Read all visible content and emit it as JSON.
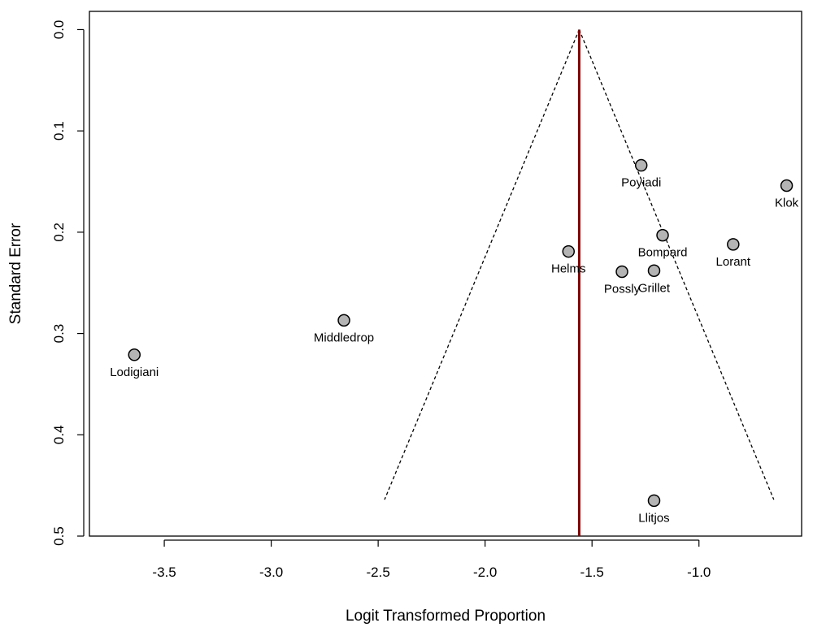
{
  "chart_data": {
    "type": "scatter",
    "title": "",
    "xlabel": "Logit Transformed Proportion",
    "ylabel": "Standard Error",
    "xlim": [
      -3.85,
      -0.52
    ],
    "ylim": [
      0.5,
      -0.018
    ],
    "x_ticks": [
      -3.5,
      -3.0,
      -2.5,
      -2.0,
      -1.5,
      -1.0
    ],
    "x_tick_labels": [
      "-3.5",
      "-3.0",
      "-2.5",
      "-2.0",
      "-1.5",
      "-1.0"
    ],
    "y_ticks": [
      0.0,
      0.1,
      0.2,
      0.3,
      0.4,
      0.5
    ],
    "y_tick_labels": [
      "0.0",
      "0.1",
      "0.2",
      "0.3",
      "0.4",
      "0.5"
    ],
    "y_reversed": true,
    "grid": false,
    "pooled_estimate": -1.56,
    "funnel": {
      "apex": [
        -1.56,
        0.0
      ],
      "left_base": [
        -2.47,
        0.464
      ],
      "right_base": [
        -0.65,
        0.464
      ]
    },
    "points": [
      {
        "label": "Poyiadi",
        "x": -1.27,
        "y": 0.134
      },
      {
        "label": "Klok",
        "x": -0.59,
        "y": 0.154
      },
      {
        "label": "Bompard",
        "x": -1.17,
        "y": 0.203
      },
      {
        "label": "Lorant",
        "x": -0.84,
        "y": 0.212
      },
      {
        "label": "Helms",
        "x": -1.61,
        "y": 0.219
      },
      {
        "label": "Possly",
        "x": -1.36,
        "y": 0.239
      },
      {
        "label": "Grillet",
        "x": -1.21,
        "y": 0.238
      },
      {
        "label": "Middledrop",
        "x": -2.66,
        "y": 0.287
      },
      {
        "label": "Lodigiani",
        "x": -3.64,
        "y": 0.321
      },
      {
        "label": "Llitjos",
        "x": -1.21,
        "y": 0.465
      }
    ],
    "colors": {
      "point_fill": "#b4b4b4",
      "point_stroke": "#000000",
      "pooled_line": "#7f0000",
      "funnel_line": "#000000"
    }
  }
}
